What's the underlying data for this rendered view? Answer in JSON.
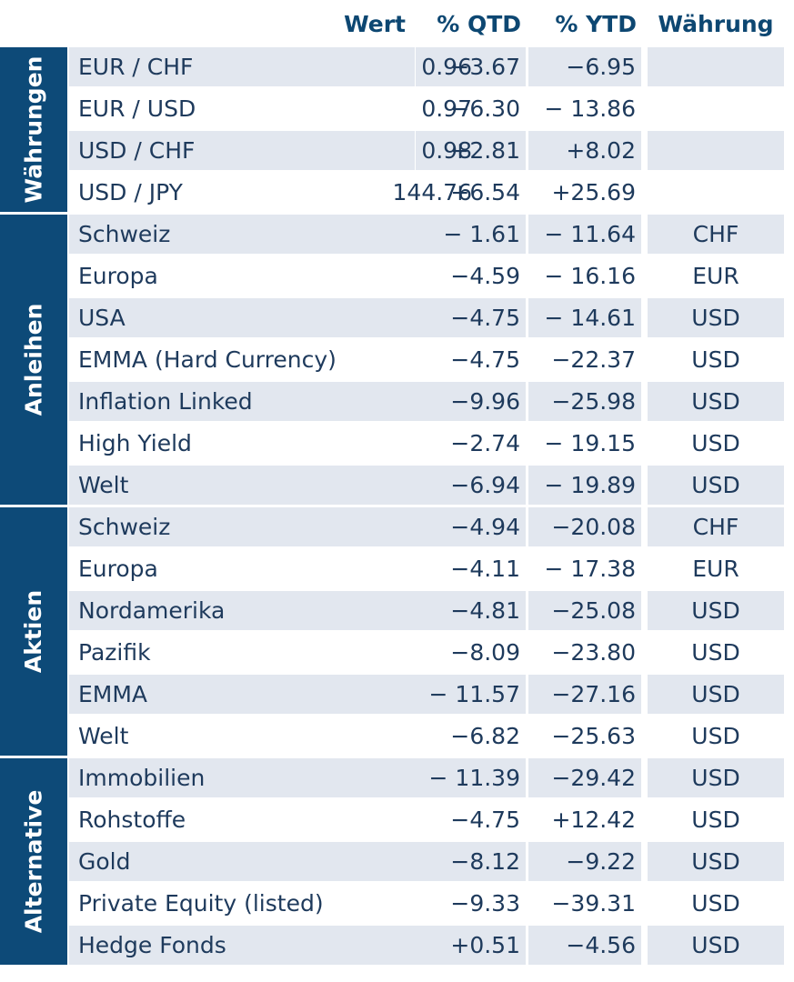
{
  "headers": {
    "wert": "Wert",
    "qtd": "% QTD",
    "ytd": "% YTD",
    "waehrung": "Währung"
  },
  "groups": [
    {
      "label": "Währungen",
      "rows": [
        {
          "name": "EUR / CHF",
          "wert": "0.96",
          "qtd": "−3.67",
          "ytd": "−6.95",
          "waehrung": ""
        },
        {
          "name": "EUR / USD",
          "wert": "0.97",
          "qtd": "−6.30",
          "ytd": "− 13.86",
          "waehrung": ""
        },
        {
          "name": "USD / CHF",
          "wert": "0.98",
          "qtd": "+2.81",
          "ytd": "+8.02",
          "waehrung": ""
        },
        {
          "name": "USD / JPY",
          "wert": "144.76",
          "qtd": "+6.54",
          "ytd": "+25.69",
          "waehrung": ""
        }
      ]
    },
    {
      "label": "Anleihen",
      "rows": [
        {
          "name": "Schweiz",
          "wert": "",
          "qtd": "− 1.61",
          "ytd": "− 11.64",
          "waehrung": "CHF"
        },
        {
          "name": "Europa",
          "wert": "",
          "qtd": "−4.59",
          "ytd": "− 16.16",
          "waehrung": "EUR"
        },
        {
          "name": "USA",
          "wert": "",
          "qtd": "−4.75",
          "ytd": "− 14.61",
          "waehrung": "USD"
        },
        {
          "name": "EMMA (Hard Currency)",
          "wert": "",
          "qtd": "−4.75",
          "ytd": "−22.37",
          "waehrung": "USD"
        },
        {
          "name": "Inflation Linked",
          "wert": "",
          "qtd": "−9.96",
          "ytd": "−25.98",
          "waehrung": "USD"
        },
        {
          "name": "High Yield",
          "wert": "",
          "qtd": "−2.74",
          "ytd": "− 19.15",
          "waehrung": "USD"
        },
        {
          "name": "Welt",
          "wert": "",
          "qtd": "−6.94",
          "ytd": "− 19.89",
          "waehrung": "USD"
        }
      ]
    },
    {
      "label": "Aktien",
      "rows": [
        {
          "name": "Schweiz",
          "wert": "",
          "qtd": "−4.94",
          "ytd": "−20.08",
          "waehrung": "CHF"
        },
        {
          "name": "Europa",
          "wert": "",
          "qtd": "−4.11",
          "ytd": "− 17.38",
          "waehrung": "EUR"
        },
        {
          "name": "Nordamerika",
          "wert": "",
          "qtd": "−4.81",
          "ytd": "−25.08",
          "waehrung": "USD"
        },
        {
          "name": "Pazifik",
          "wert": "",
          "qtd": "−8.09",
          "ytd": "−23.80",
          "waehrung": "USD"
        },
        {
          "name": "EMMA",
          "wert": "",
          "qtd": "− 11.57",
          "ytd": "−27.16",
          "waehrung": "USD"
        },
        {
          "name": "Welt",
          "wert": "",
          "qtd": "−6.82",
          "ytd": "−25.63",
          "waehrung": "USD"
        }
      ]
    },
    {
      "label": "Alternative",
      "rows": [
        {
          "name": "Immobilien",
          "wert": "",
          "qtd": "− 11.39",
          "ytd": "−29.42",
          "waehrung": "USD"
        },
        {
          "name": "Rohstoffe",
          "wert": "",
          "qtd": "−4.75",
          "ytd": "+12.42",
          "waehrung": "USD"
        },
        {
          "name": "Gold",
          "wert": "",
          "qtd": "−8.12",
          "ytd": "−9.22",
          "waehrung": "USD"
        },
        {
          "name": "Private Equity (listed)",
          "wert": "",
          "qtd": "−9.33",
          "ytd": "−39.31",
          "waehrung": "USD"
        },
        {
          "name": "Hedge Fonds",
          "wert": "",
          "qtd": "+0.51",
          "ytd": "−4.56",
          "waehrung": "USD"
        }
      ]
    }
  ]
}
